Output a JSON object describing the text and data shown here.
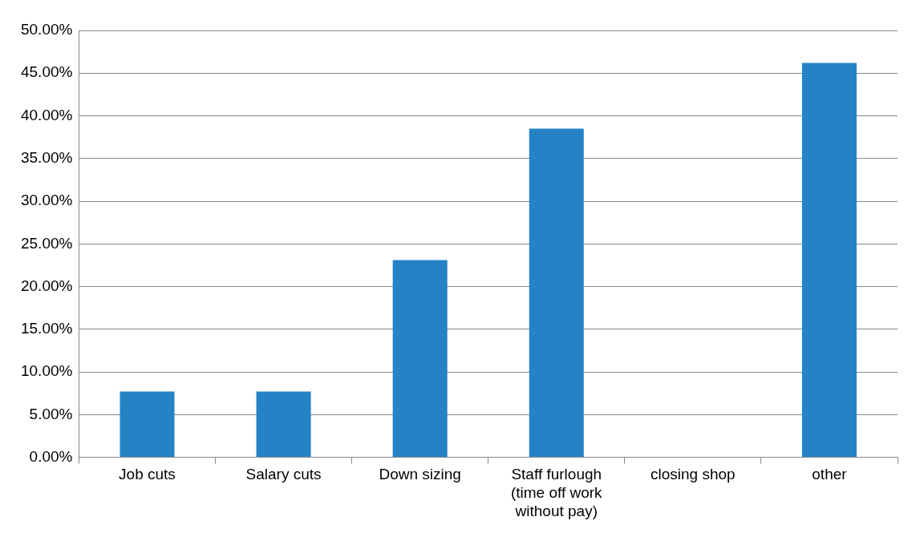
{
  "chart_data": {
    "type": "bar",
    "categories": [
      "Job cuts",
      "Salary cuts",
      "Down sizing",
      "Staff furlough (time off work without pay)",
      "closing shop",
      "other"
    ],
    "values": [
      7.7,
      7.7,
      23.1,
      38.5,
      0,
      46.2
    ],
    "color": "#2583c5",
    "ylim": [
      0,
      50
    ],
    "yticks": [
      {
        "value": 0,
        "label": "0.00%"
      },
      {
        "value": 5,
        "label": "5.00%"
      },
      {
        "value": 10,
        "label": "10.00%"
      },
      {
        "value": 15,
        "label": "15.00%"
      },
      {
        "value": 20,
        "label": "20.00%"
      },
      {
        "value": 25,
        "label": "25.00%"
      },
      {
        "value": 30,
        "label": "30.00%"
      },
      {
        "value": 35,
        "label": "35.00%"
      },
      {
        "value": 40,
        "label": "40.00%"
      },
      {
        "value": 45,
        "label": "45.00%"
      },
      {
        "value": 50,
        "label": "50.00%"
      }
    ],
    "grid": "y",
    "legend": false
  }
}
